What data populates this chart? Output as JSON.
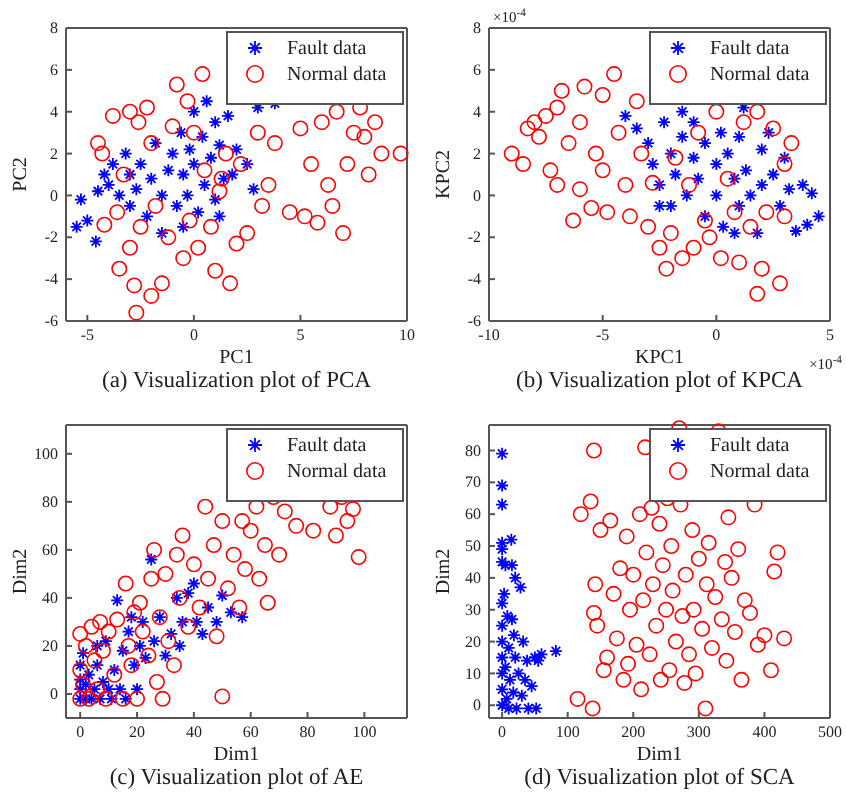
{
  "chart_data": [
    {
      "type": "scatter",
      "title": "(a) Visualization plot of PCA",
      "xlabel": "PC1",
      "ylabel": "PC2",
      "xlim": [
        -6,
        10
      ],
      "xticks": [
        -5,
        0,
        5,
        10
      ],
      "ylim": [
        -6,
        8
      ],
      "yticks": [
        -6,
        -4,
        -2,
        0,
        2,
        4,
        6,
        8
      ],
      "legend": "top right",
      "grid": false,
      "series": [
        {
          "name": "Fault data",
          "color": "#0000ff",
          "marker": "cross",
          "x": [
            -5.5,
            -5.3,
            -5,
            -4.6,
            -4.5,
            -4.2,
            -4,
            -3.8,
            -3.5,
            -3.2,
            -3,
            -3,
            -2.7,
            -2.5,
            -2.2,
            -2,
            -1.8,
            -1.5,
            -1.5,
            -1.2,
            -1,
            -0.8,
            -0.6,
            -0.5,
            -0.3,
            -0.2,
            0,
            0,
            0.2,
            0.4,
            0.5,
            0.6,
            0.8,
            1,
            1,
            1.2,
            1.4,
            1.6,
            1.8,
            2,
            2.5,
            2.8,
            3,
            3.8,
            1.2,
            -0.5
          ],
          "values": [
            -1.5,
            -0.2,
            -1.2,
            -2.2,
            0.2,
            1,
            0.5,
            1.5,
            0,
            2,
            1,
            -0.5,
            0.3,
            1.5,
            -1,
            0.8,
            2.5,
            0,
            -1.8,
            1.2,
            2,
            -0.5,
            3,
            1,
            0,
            2.2,
            1.5,
            4,
            -0.8,
            2.8,
            0.5,
            4.5,
            1.8,
            3.5,
            -0.2,
            2.4,
            0.8,
            3.8,
            1,
            2.2,
            1.5,
            0.3,
            4.2,
            4.4,
            -1,
            -1.5
          ]
        },
        {
          "name": "Normal data",
          "color": "#ff0000",
          "marker": "circle",
          "x": [
            -4.5,
            -4.3,
            -4.2,
            -3.8,
            -3.6,
            -3.5,
            -3.3,
            -3,
            -3,
            -2.8,
            -2.7,
            -2.6,
            -2.5,
            -2.2,
            -2,
            -2,
            -1.8,
            -1.5,
            -1.2,
            -1,
            -0.8,
            -0.5,
            -0.3,
            -0.2,
            0,
            0.2,
            0.4,
            0.5,
            0.8,
            1,
            1.2,
            1.3,
            1.5,
            1.7,
            2,
            2.2,
            2.5,
            3,
            3.2,
            3.5,
            3.8,
            4.5,
            5,
            5.2,
            5.5,
            5.8,
            6,
            6.3,
            6.5,
            6.7,
            7,
            7.2,
            7.5,
            7.8,
            8,
            8.2,
            8.5,
            8.8,
            9.7
          ],
          "values": [
            2.5,
            2,
            -1.4,
            3.8,
            -0.8,
            -3.5,
            1,
            4,
            -2.5,
            -4.3,
            -5.6,
            3.5,
            -1.5,
            4.2,
            -4.8,
            2.5,
            -0.5,
            -4.2,
            -2,
            3.3,
            5.3,
            -3,
            4.5,
            -1.2,
            3,
            -2.5,
            5.8,
            1.2,
            -1.5,
            -3.6,
            0.2,
            0.8,
            2,
            -4.2,
            -2.3,
            1.5,
            -1.8,
            3,
            -0.5,
            0.5,
            2.5,
            -0.8,
            3.2,
            -1,
            1.5,
            -1.3,
            3.5,
            0.5,
            -0.5,
            4,
            -1.8,
            1.5,
            3,
            4.2,
            2.8,
            1,
            3.5,
            2,
            2
          ]
        }
      ]
    },
    {
      "type": "scatter",
      "title": "(b) Visualization plot of KPCA",
      "xlabel": "KPC1",
      "ylabel": "KPC2",
      "xlim": [
        -10,
        5
      ],
      "xticks": [
        -10,
        -5,
        0,
        5
      ],
      "ylim": [
        -6,
        8
      ],
      "yticks": [
        -6,
        -4,
        -2,
        0,
        2,
        4,
        6,
        8
      ],
      "legend": "top right",
      "grid": false,
      "annotations": [
        "×10$^{-4}$",
        "×10$^{-4}$"
      ],
      "series": [
        {
          "name": "Fault data",
          "color": "#0000ff",
          "marker": "cross",
          "x": [
            -4,
            -3.5,
            -3,
            -2.8,
            -2.5,
            -2.3,
            -2,
            -2,
            -1.8,
            -1.5,
            -1.5,
            -1.3,
            -1,
            -1,
            -0.8,
            -0.5,
            -0.5,
            0,
            0,
            0.2,
            0.3,
            0.5,
            0.8,
            1,
            1,
            1.3,
            1.5,
            1.8,
            2,
            2,
            2.3,
            2.5,
            2.8,
            3,
            3.2,
            3.5,
            3.8,
            4,
            4.2,
            4.5,
            1.2,
            -2.5,
            0.8
          ],
          "values": [
            3.8,
            3.2,
            2.5,
            1.5,
            0.5,
            3.5,
            2,
            -0.5,
            1,
            4,
            2.8,
            0,
            1.8,
            3.5,
            0.8,
            2.5,
            -1,
            1.5,
            0,
            3,
            -1.5,
            2,
            0.8,
            -0.5,
            2.8,
            1.2,
            0,
            -1.8,
            2.2,
            0.5,
            3,
            1,
            -0.5,
            1.8,
            0.3,
            -1.7,
            0.5,
            -1.4,
            0.1,
            -1,
            4.2,
            -0.5,
            -1.8
          ]
        },
        {
          "name": "Normal data",
          "color": "#ff0000",
          "marker": "circle",
          "x": [
            -9,
            -8.5,
            -8.3,
            -8,
            -7.8,
            -7.5,
            -7.3,
            -7,
            -7,
            -6.8,
            -6.5,
            -6.3,
            -6,
            -6,
            -5.8,
            -5.5,
            -5.3,
            -5,
            -5,
            -4.8,
            -4.5,
            -4.3,
            -4,
            -3.8,
            -3.5,
            -3.3,
            -3,
            -2.8,
            -2.5,
            -2.2,
            -2,
            -1.8,
            -1.5,
            -1.2,
            -1,
            -0.8,
            -0.5,
            -0.3,
            0,
            0.2,
            0.5,
            0.8,
            1,
            1.2,
            1.5,
            1.8,
            2,
            2.2,
            2.5,
            2.8,
            3,
            3,
            3.3,
            1.8
          ],
          "values": [
            2,
            1.5,
            3.2,
            3.5,
            2.8,
            3.8,
            1.2,
            4.2,
            0.5,
            5,
            2.5,
            -1.2,
            0.3,
            3.5,
            5.2,
            -0.6,
            2,
            4.8,
            1.2,
            -0.8,
            5.8,
            3,
            0.5,
            -1,
            4.5,
            2,
            -1.5,
            0.6,
            -2.5,
            -3.5,
            -1.8,
            1.8,
            -3,
            0.5,
            -2.5,
            3,
            -1.2,
            -2,
            4,
            -3,
            0.8,
            -0.8,
            -3.2,
            3.5,
            -1.5,
            4,
            -3.5,
            -0.8,
            3.2,
            -4.2,
            1.5,
            -1,
            2.5,
            -4.7
          ]
        }
      ]
    },
    {
      "type": "scatter",
      "title": "(c) Visualization plot of AE",
      "xlabel": "Dim1",
      "ylabel": "Dim2",
      "xlim": [
        -5,
        115
      ],
      "xticks": [
        0,
        20,
        40,
        60,
        80,
        100
      ],
      "ylim": [
        -10,
        112
      ],
      "yticks": [
        0,
        20,
        40,
        60,
        80,
        100
      ],
      "legend": "top right",
      "grid": false,
      "series": [
        {
          "name": "Fault data",
          "color": "#0000ff",
          "marker": "cross",
          "x": [
            0,
            0,
            0,
            0,
            1,
            2,
            2,
            3,
            4,
            5,
            6,
            6,
            7,
            8,
            9,
            10,
            11,
            12,
            13,
            14,
            15,
            16,
            17,
            18,
            19,
            20,
            21,
            22,
            23,
            25,
            26,
            28,
            30,
            32,
            34,
            35,
            36,
            38,
            40,
            41,
            43,
            45,
            48,
            50,
            53,
            57
          ],
          "values": [
            -2,
            2,
            6,
            12,
            17,
            -2,
            4,
            8,
            -2,
            2,
            12,
            20,
            -2,
            5,
            22,
            2,
            -2,
            10,
            39,
            2,
            18,
            -2,
            26,
            32,
            12,
            2,
            20,
            30,
            15,
            56,
            22,
            32,
            16,
            25,
            40,
            20,
            30,
            42,
            46,
            30,
            25,
            36,
            30,
            41,
            34,
            32
          ]
        },
        {
          "name": "Normal data",
          "color": "#ff0000",
          "marker": "circle",
          "x": [
            0,
            0,
            0,
            1,
            2,
            3,
            4,
            5,
            6,
            7,
            8,
            9,
            10,
            12,
            13,
            15,
            16,
            17,
            18,
            19,
            20,
            21,
            22,
            24,
            25,
            26,
            27,
            28,
            29,
            30,
            31,
            33,
            34,
            35,
            36,
            38,
            40,
            42,
            44,
            45,
            47,
            48,
            50,
            50,
            52,
            54,
            56,
            57,
            58,
            60,
            62,
            63,
            65,
            66,
            68,
            70,
            72,
            76,
            82,
            88,
            90,
            92,
            94,
            96,
            98
          ],
          "values": [
            -2,
            25,
            10,
            4,
            20,
            -2,
            28,
            14,
            2,
            30,
            18,
            -2,
            26,
            8,
            31,
            -2,
            46,
            20,
            12,
            34,
            -2,
            38,
            26,
            16,
            48,
            60,
            5,
            32,
            -2,
            50,
            22,
            12,
            58,
            40,
            66,
            28,
            54,
            36,
            78,
            48,
            62,
            24,
            72,
            -1,
            44,
            58,
            36,
            72,
            52,
            68,
            78,
            48,
            62,
            38,
            82,
            58,
            76,
            70,
            68,
            78,
            66,
            82,
            72,
            77,
            57
          ]
        }
      ]
    },
    {
      "type": "scatter",
      "title": "(d) Visualization plot of SCA",
      "xlabel": "Dim1",
      "ylabel": "Dim2",
      "xlim": [
        -20,
        500
      ],
      "xticks": [
        0,
        100,
        200,
        300,
        400,
        500
      ],
      "ylim": [
        -4,
        88
      ],
      "yticks": [
        0,
        10,
        20,
        30,
        40,
        50,
        60,
        70,
        80
      ],
      "legend": "top right",
      "grid": false,
      "series": [
        {
          "name": "Fault data",
          "color": "#0000ff",
          "marker": "cross",
          "x": [
            0,
            0,
            0,
            0,
            0,
            0,
            0,
            0,
            0,
            0,
            0,
            0,
            0,
            3,
            5,
            5,
            7,
            8,
            10,
            10,
            12,
            14,
            15,
            15,
            17,
            18,
            20,
            20,
            22,
            25,
            28,
            30,
            32,
            35,
            38,
            40,
            45,
            50,
            52,
            55,
            60,
            82
          ],
          "values": [
            79,
            69,
            63,
            51,
            49,
            45,
            32,
            25,
            20,
            15,
            10,
            5,
            0,
            35,
            44,
            12,
            2,
            28,
            18,
            -1,
            8,
            52,
            27,
            44,
            4,
            22,
            15,
            40,
            -1,
            10,
            37,
            3,
            20,
            8,
            14,
            -1,
            6,
            15,
            -1,
            14,
            16,
            17
          ]
        },
        {
          "name": "Normal data",
          "color": "#ff0000",
          "marker": "circle",
          "x": [
            115,
            120,
            135,
            138,
            140,
            140,
            142,
            145,
            150,
            155,
            160,
            165,
            170,
            175,
            180,
            185,
            190,
            192,
            195,
            200,
            205,
            210,
            212,
            215,
            218,
            220,
            225,
            228,
            230,
            235,
            240,
            242,
            245,
            250,
            252,
            255,
            258,
            260,
            265,
            270,
            272,
            275,
            278,
            280,
            285,
            290,
            292,
            295,
            300,
            305,
            310,
            312,
            315,
            320,
            325,
            330,
            335,
            340,
            342,
            345,
            350,
            355,
            360,
            365,
            370,
            378,
            385,
            390,
            400,
            410,
            415,
            420,
            430
          ],
          "values": [
            2,
            60,
            64,
            -1,
            80,
            29,
            38,
            25,
            55,
            11,
            15,
            58,
            35,
            21,
            43,
            8,
            53,
            13,
            30,
            41,
            19,
            60,
            5,
            33,
            81,
            48,
            16,
            62,
            38,
            25,
            57,
            8,
            44,
            30,
            65,
            11,
            50,
            36,
            20,
            87,
            63,
            28,
            7,
            41,
            16,
            55,
            30,
            10,
            46,
            24,
            -1,
            38,
            51,
            18,
            34,
            86,
            27,
            45,
            14,
            59,
            40,
            23,
            49,
            8,
            33,
            29,
            63,
            19,
            22,
            11,
            42,
            48,
            21
          ]
        }
      ]
    }
  ]
}
